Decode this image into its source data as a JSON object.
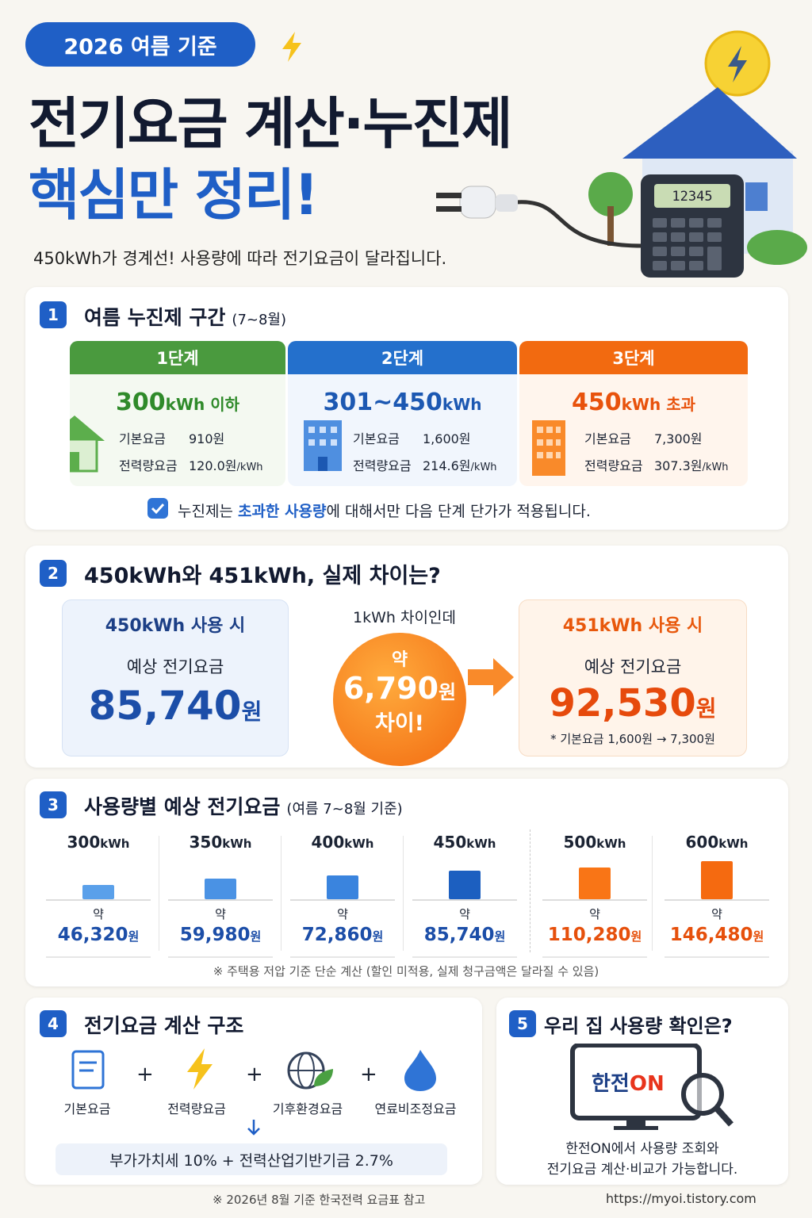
{
  "header": {
    "badge": "2026 여름 기준",
    "title_line1": "전기요금 계산·누진제",
    "title_line2": "핵심만 정리!",
    "subtitle": "450kWh가 경계선!  사용량에 따라 전기요금이 달라집니다.",
    "calculator_display": "12345"
  },
  "section1": {
    "number": "1",
    "title": "여름 누진제 구간",
    "note": "(7~8월)",
    "tiers": [
      {
        "name": "1단계",
        "range": "300",
        "range_unit": "kWh 이하",
        "base_label": "기본요금",
        "base": "910원",
        "energy_label": "전력량요금",
        "energy": "120.0원",
        "energy_unit": "/kWh"
      },
      {
        "name": "2단계",
        "range": "301~450",
        "range_unit": "kWh",
        "base_label": "기본요금",
        "base": "1,600원",
        "energy_label": "전력량요금",
        "energy": "214.6원",
        "energy_unit": "/kWh"
      },
      {
        "name": "3단계",
        "range": "450",
        "range_unit": "kWh 초과",
        "base_label": "기본요금",
        "base": "7,300원",
        "energy_label": "전력량요금",
        "energy": "307.3원",
        "energy_unit": "/kWh"
      }
    ],
    "footnote_start": "누진제는 ",
    "footnote_highlight": "초과한 사용량",
    "footnote_end": "에 대해서만 다음 단계 단가가 적용됩니다."
  },
  "section2": {
    "number": "2",
    "title": "450kWh와 451kWh, 실제 차이는?",
    "left": {
      "usage": "450kWh 사용 시",
      "label": "예상 전기요금",
      "amount": "85,740",
      "currency": "원"
    },
    "middle": {
      "caption": "1kWh 차이인데",
      "prefix": "약",
      "amount": "6,790",
      "currency": "원",
      "suffix": "차이!"
    },
    "right": {
      "usage": "451kWh 사용 시",
      "label": "예상 전기요금",
      "amount": "92,530",
      "currency": "원",
      "note": "* 기본요금 1,600원 → 7,300원"
    }
  },
  "section3": {
    "number": "3",
    "title": "사용량별 예상 전기요금",
    "note": "(여름 7~8월 기준)",
    "items": [
      {
        "usage": "300",
        "unit": "kWh",
        "prefix": "약",
        "amount": "46,320",
        "currency": "원"
      },
      {
        "usage": "350",
        "unit": "kWh",
        "prefix": "약",
        "amount": "59,980",
        "currency": "원"
      },
      {
        "usage": "400",
        "unit": "kWh",
        "prefix": "약",
        "amount": "72,860",
        "currency": "원"
      },
      {
        "usage": "450",
        "unit": "kWh",
        "prefix": "약",
        "amount": "85,740",
        "currency": "원"
      },
      {
        "usage": "500",
        "unit": "kWh",
        "prefix": "약",
        "amount": "110,280",
        "currency": "원"
      },
      {
        "usage": "600",
        "unit": "kWh",
        "prefix": "약",
        "amount": "146,480",
        "currency": "원"
      }
    ],
    "footnote": "※ 주택용 저압 기준 단순 계산 (할인 미적용, 실제 청구금액은 달라질 수 있음)"
  },
  "section4": {
    "number": "4",
    "title": "전기요금 계산 구조",
    "items": [
      "기본요금",
      "전력량요금",
      "기후환경요금",
      "연료비조정요금"
    ],
    "operator": "+",
    "extra": "부가가치세 10%  +  전력산업기반기금 2.7%"
  },
  "section5": {
    "number": "5",
    "title": "우리 집 사용량 확인은?",
    "logo_main": "한전",
    "logo_accent": "ON",
    "desc_line1": "한전ON에서 사용량 조회와",
    "desc_line2": "전기요금 계산·비교가 가능합니다."
  },
  "footer": {
    "source": "※ 2026년 8월 기준 한국전력 요금표 참고",
    "url": "https://myoi.tistory.com"
  }
}
